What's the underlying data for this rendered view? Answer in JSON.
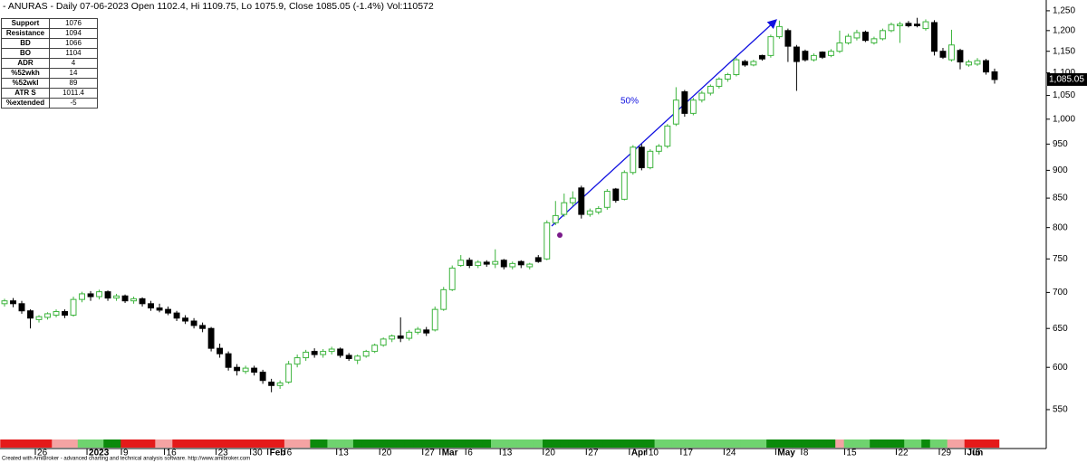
{
  "chart_data": {
    "type": "candlestick",
    "title": "- ANURAS - Daily 07-06-2023 Open 1102.4, Hi 1109.75, Lo 1075.9, Close 1085.05 (-1.4%)  Vol:110572",
    "footer": "Created with AmiBroker - advanced charting and technical analysis software. http://www.amibroker.com",
    "annotation": "50%",
    "log_scale": true,
    "grid": false,
    "up_color": "#3cb43c",
    "down_color": "#000000",
    "ylim": [
      523,
      1278
    ],
    "yticks": [
      {
        "value": 1250,
        "label": "1,250"
      },
      {
        "value": 1200,
        "label": "1,200"
      },
      {
        "value": 1150,
        "label": "1,150"
      },
      {
        "value": 1100,
        "label": "1,100"
      },
      {
        "value": 1050,
        "label": "1,050"
      },
      {
        "value": 1000,
        "label": "1,000"
      },
      950,
      900,
      850,
      800,
      750,
      700,
      650,
      600,
      550
    ],
    "last_price": {
      "value": 1085.05,
      "label": "1,085.05"
    },
    "table": {
      "rows": [
        [
          "Support",
          1076
        ],
        [
          "Resistance",
          1094
        ],
        [
          "BD",
          1066
        ],
        [
          "BO",
          1104
        ],
        [
          "ADR",
          4
        ],
        [
          "%52wkh",
          14
        ],
        [
          "%52wkl",
          89
        ],
        [
          "ATR S",
          1011.4
        ],
        [
          "%extended",
          -5
        ]
      ]
    },
    "categories": [
      null,
      null,
      null,
      null,
      "26",
      null,
      null,
      null,
      null,
      null,
      "2023",
      null,
      null,
      null,
      "9",
      null,
      null,
      null,
      null,
      "16",
      null,
      null,
      null,
      null,
      null,
      "23",
      null,
      null,
      null,
      "30",
      null,
      "Feb",
      null,
      "6",
      null,
      null,
      null,
      null,
      null,
      "13",
      null,
      null,
      null,
      null,
      "20",
      null,
      null,
      null,
      null,
      "27",
      null,
      "Mar",
      null,
      null,
      "6",
      null,
      null,
      null,
      "13",
      null,
      null,
      null,
      null,
      "20",
      null,
      null,
      null,
      null,
      "27",
      null,
      null,
      null,
      null,
      "Apr",
      null,
      "10",
      null,
      null,
      null,
      "17",
      null,
      null,
      null,
      null,
      "24",
      null,
      null,
      null,
      null,
      null,
      "May",
      null,
      null,
      "8",
      null,
      null,
      null,
      null,
      "15",
      null,
      null,
      null,
      null,
      null,
      "22",
      null,
      null,
      null,
      null,
      "29",
      null,
      null,
      "Jun",
      "5",
      null,
      null
    ],
    "open": [
      684,
      688,
      684,
      674,
      662,
      665,
      668,
      673,
      668,
      690,
      698,
      694,
      701,
      692,
      695,
      688,
      691,
      684,
      678,
      676,
      671,
      664,
      660,
      654,
      650,
      624,
      617,
      600,
      595,
      599,
      594,
      582,
      578,
      582,
      604,
      612,
      620,
      616,
      620,
      623,
      615,
      609,
      614,
      620,
      628,
      636,
      640,
      637,
      645,
      648,
      648,
      676,
      704,
      740,
      748,
      740,
      745,
      742,
      748,
      738,
      746,
      738,
      752,
      750,
      808,
      822,
      842,
      868,
      822,
      826,
      834,
      866,
      848,
      896,
      944,
      905,
      936,
      946,
      990,
      1058,
      1012,
      1040,
      1055,
      1070,
      1086,
      1096,
      1126,
      1118,
      1140,
      1140,
      1185,
      1200,
      1160,
      1150,
      1130,
      1148,
      1140,
      1150,
      1170,
      1182,
      1196,
      1170,
      1180,
      1200,
      1212,
      1218,
      1216,
      1205,
      1220,
      1150,
      1130,
      1152,
      1118,
      1120,
      1128,
      1102.4
    ],
    "high": [
      691,
      692,
      688,
      676,
      668,
      672,
      676,
      676,
      694,
      701,
      702,
      704,
      703,
      698,
      697,
      694,
      693,
      688,
      684,
      680,
      674,
      668,
      664,
      658,
      652,
      630,
      620,
      604,
      602,
      602,
      597,
      586,
      584,
      608,
      616,
      622,
      624,
      623,
      626,
      625,
      618,
      616,
      622,
      630,
      638,
      642,
      665,
      648,
      652,
      652,
      680,
      708,
      740,
      756,
      752,
      748,
      748,
      765,
      750,
      746,
      748,
      744,
      756,
      812,
      845,
      858,
      862,
      872,
      832,
      836,
      866,
      868,
      900,
      948,
      950,
      940,
      950,
      990,
      1068,
      1062,
      1045,
      1060,
      1074,
      1090,
      1100,
      1135,
      1130,
      1130,
      1142,
      1190,
      1225,
      1205,
      1165,
      1154,
      1145,
      1150,
      1155,
      1200,
      1192,
      1202,
      1200,
      1185,
      1205,
      1220,
      1222,
      1224,
      1232,
      1228,
      1226,
      1158,
      1202,
      1156,
      1130,
      1134,
      1132,
      1109.75
    ],
    "low": [
      680,
      679,
      670,
      650,
      658,
      662,
      665,
      664,
      666,
      686,
      688,
      690,
      688,
      688,
      685,
      684,
      680,
      674,
      672,
      668,
      660,
      656,
      650,
      645,
      620,
      612,
      596,
      590,
      592,
      590,
      580,
      570,
      574,
      580,
      600,
      608,
      612,
      612,
      616,
      612,
      608,
      604,
      612,
      618,
      626,
      632,
      632,
      634,
      642,
      640,
      646,
      674,
      702,
      738,
      736,
      736,
      738,
      736,
      734,
      734,
      736,
      734,
      744,
      748,
      804,
      818,
      836,
      815,
      818,
      822,
      830,
      842,
      846,
      892,
      900,
      902,
      930,
      942,
      986,
      1005,
      1008,
      1035,
      1050,
      1065,
      1080,
      1092,
      1114,
      1115,
      1128,
      1135,
      1180,
      1125,
      1060,
      1126,
      1126,
      1132,
      1136,
      1146,
      1166,
      1176,
      1172,
      1166,
      1176,
      1196,
      1170,
      1208,
      1208,
      1200,
      1140,
      1132,
      1126,
      1108,
      1114,
      1116,
      1096,
      1075.9
    ],
    "close": [
      688,
      684,
      674,
      664,
      666,
      670,
      673,
      668,
      690,
      698,
      694,
      701,
      692,
      695,
      688,
      691,
      684,
      678,
      675,
      671,
      664,
      660,
      654,
      650,
      624,
      617,
      600,
      596,
      599,
      594,
      584,
      578,
      581,
      604,
      612,
      619,
      616,
      620,
      623,
      615,
      611,
      614,
      620,
      628,
      636,
      640,
      637,
      645,
      649,
      644,
      676,
      704,
      736,
      748,
      740,
      745,
      742,
      746,
      738,
      743,
      741,
      742,
      746,
      808,
      820,
      842,
      850,
      822,
      828,
      832,
      862,
      846,
      896,
      944,
      905,
      936,
      946,
      986,
      1040,
      1012,
      1040,
      1055,
      1070,
      1086,
      1096,
      1130,
      1118,
      1126,
      1132,
      1185,
      1210,
      1162,
      1126,
      1130,
      1140,
      1136,
      1150,
      1170,
      1186,
      1195,
      1176,
      1180,
      1200,
      1215,
      1216,
      1212,
      1212,
      1222,
      1150,
      1136,
      1165,
      1125,
      1125,
      1128,
      1102,
      1085.05
    ],
    "ribbon_colors": [
      "#e41a1a",
      "#e41a1a",
      "#e41a1a",
      "#e41a1a",
      "#e41a1a",
      "#e41a1a",
      "#f4a3a3",
      "#f4a3a3",
      "#f4a3a3",
      "#6fd36f",
      "#6fd36f",
      "#6fd36f",
      "#0b8a0b",
      "#0b8a0b",
      "#e41a1a",
      "#e41a1a",
      "#e41a1a",
      "#e41a1a",
      "#f4a3a3",
      "#f4a3a3",
      "#e41a1a",
      "#e41a1a",
      "#e41a1a",
      "#e41a1a",
      "#e41a1a",
      "#e41a1a",
      "#e41a1a",
      "#e41a1a",
      "#e41a1a",
      "#e41a1a",
      "#e41a1a",
      "#e41a1a",
      "#e41a1a",
      "#f4a3a3",
      "#f4a3a3",
      "#f4a3a3",
      "#0b8a0b",
      "#0b8a0b",
      "#6fd36f",
      "#6fd36f",
      "#6fd36f",
      "#0b8a0b",
      "#0b8a0b",
      "#0b8a0b",
      "#0b8a0b",
      "#0b8a0b",
      "#0b8a0b",
      "#0b8a0b",
      "#0b8a0b",
      "#0b8a0b",
      "#0b8a0b",
      "#0b8a0b",
      "#0b8a0b",
      "#0b8a0b",
      "#0b8a0b",
      "#0b8a0b",
      "#0b8a0b",
      "#6fd36f",
      "#6fd36f",
      "#6fd36f",
      "#6fd36f",
      "#6fd36f",
      "#6fd36f",
      "#0b8a0b",
      "#0b8a0b",
      "#0b8a0b",
      "#0b8a0b",
      "#0b8a0b",
      "#0b8a0b",
      "#0b8a0b",
      "#0b8a0b",
      "#0b8a0b",
      "#0b8a0b",
      "#0b8a0b",
      "#0b8a0b",
      "#0b8a0b",
      "#6fd36f",
      "#6fd36f",
      "#6fd36f",
      "#6fd36f",
      "#6fd36f",
      "#6fd36f",
      "#6fd36f",
      "#6fd36f",
      "#6fd36f",
      "#6fd36f",
      "#6fd36f",
      "#6fd36f",
      "#6fd36f",
      "#0b8a0b",
      "#0b8a0b",
      "#0b8a0b",
      "#0b8a0b",
      "#0b8a0b",
      "#0b8a0b",
      "#0b8a0b",
      "#0b8a0b",
      "#f4a3a3",
      "#6fd36f",
      "#6fd36f",
      "#6fd36f",
      "#0b8a0b",
      "#0b8a0b",
      "#0b8a0b",
      "#0b8a0b",
      "#6fd36f",
      "#6fd36f",
      "#0b8a0b",
      "#6fd36f",
      "#6fd36f",
      "#f4a3a3",
      "#f4a3a3",
      "#e41a1a",
      "#e41a1a",
      "#e41a1a",
      "#e41a1a"
    ]
  }
}
